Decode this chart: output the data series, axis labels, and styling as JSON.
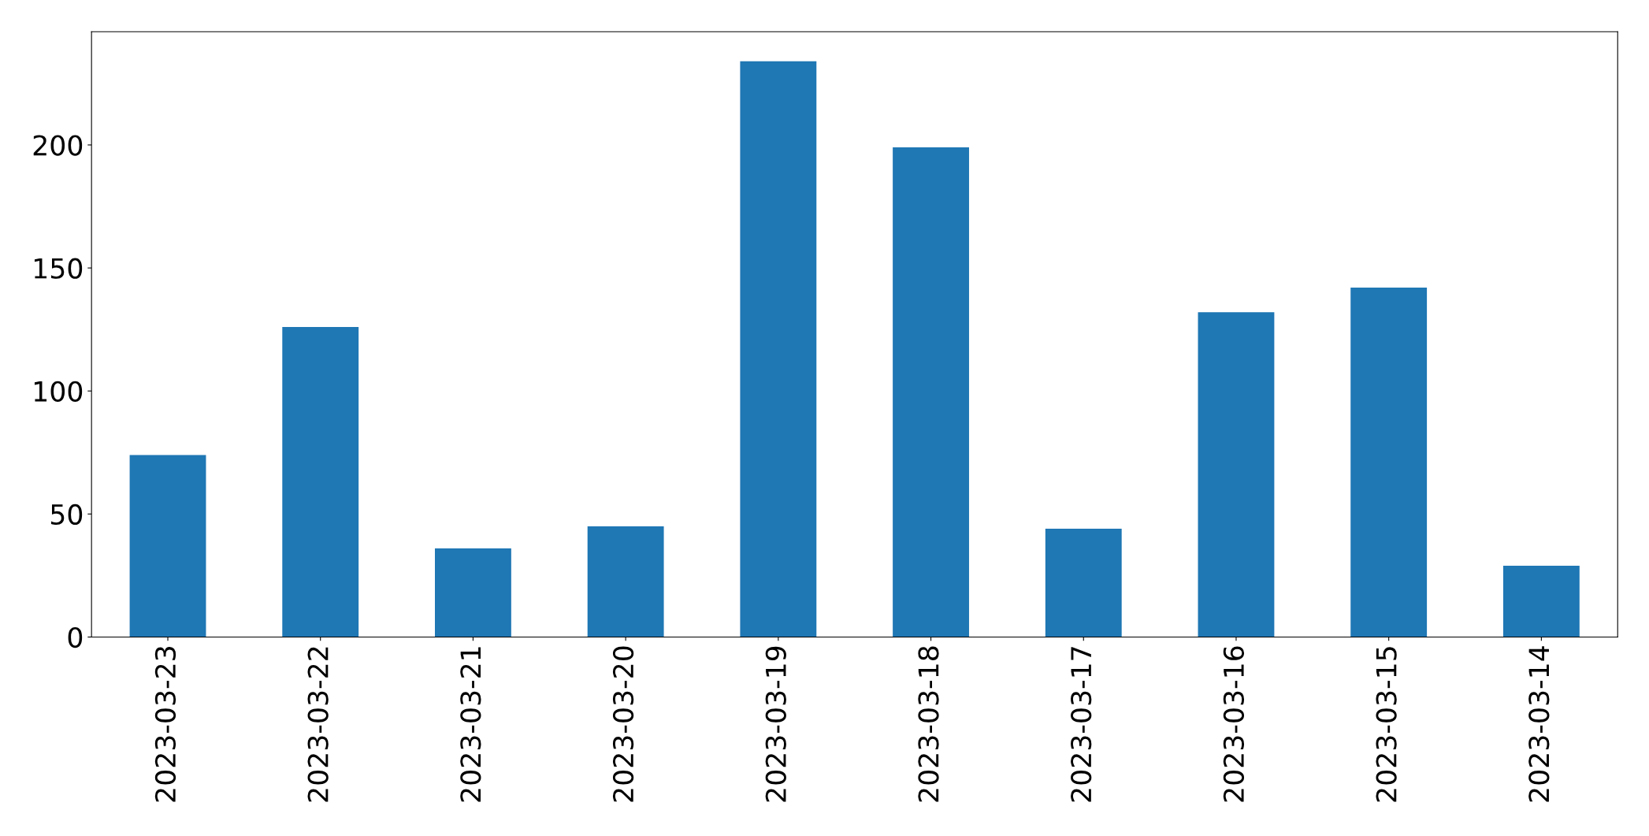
{
  "chart_data": {
    "type": "bar",
    "categories": [
      "2023-03-23",
      "2023-03-22",
      "2023-03-21",
      "2023-03-20",
      "2023-03-19",
      "2023-03-18",
      "2023-03-17",
      "2023-03-16",
      "2023-03-15",
      "2023-03-14"
    ],
    "values": [
      74,
      126,
      36,
      45,
      234,
      199,
      44,
      132,
      142,
      29
    ],
    "color": "#1f77b4",
    "ylim": [
      0,
      246
    ],
    "yticks": [
      0,
      50,
      100,
      150,
      200
    ],
    "grid": false
  }
}
